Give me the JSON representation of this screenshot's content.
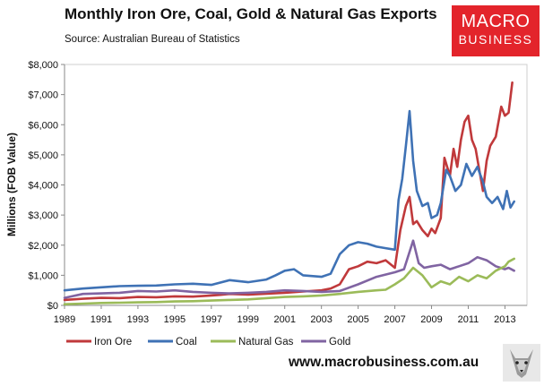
{
  "header": {
    "title": "Monthly Iron Ore, Coal, Gold & Natural Gas Exports",
    "subtitle": "Source: Australian Bureau of Statistics"
  },
  "logo": {
    "line1": "MACRO",
    "line2": "BUSINESS",
    "color": "#e3242b"
  },
  "footer": {
    "website": "www.macrobusiness.com.au",
    "mascot_icon": "wolf-icon"
  },
  "chart_data": {
    "type": "line",
    "title": "Monthly Iron Ore, Coal, Gold & Natural Gas Exports",
    "subtitle": "Source: Australian Bureau of Statistics",
    "xlabel": "",
    "ylabel": "Millions (FOB Value)",
    "xlim": [
      1989,
      2014.2
    ],
    "ylim": [
      0,
      8000
    ],
    "x_ticks": [
      1989,
      1991,
      1993,
      1995,
      1997,
      1999,
      2001,
      2003,
      2005,
      2007,
      2009,
      2011,
      2013
    ],
    "y_ticks": [
      0,
      1000,
      2000,
      3000,
      4000,
      5000,
      6000,
      7000,
      8000
    ],
    "y_tick_labels": [
      "$0",
      "$1,000",
      "$2,000",
      "$3,000",
      "$4,000",
      "$5,000",
      "$6,000",
      "$7,000",
      "$8,000"
    ],
    "grid": false,
    "legend_position": "bottom",
    "series": [
      {
        "name": "Iron Ore",
        "color": "#c0393b",
        "x": [
          1989.0,
          1990.0,
          1991.0,
          1992.0,
          1993.0,
          1994.0,
          1995.0,
          1996.0,
          1997.0,
          1997.5,
          1998.0,
          1999.0,
          2000.0,
          2001.0,
          2002.0,
          2003.0,
          2003.5,
          2004.0,
          2004.5,
          2005.0,
          2005.5,
          2006.0,
          2006.5,
          2007.0,
          2007.3,
          2007.6,
          2007.8,
          2008.0,
          2008.2,
          2008.5,
          2008.8,
          2009.0,
          2009.2,
          2009.5,
          2009.7,
          2010.0,
          2010.2,
          2010.4,
          2010.6,
          2010.8,
          2011.0,
          2011.2,
          2011.4,
          2011.6,
          2011.8,
          2012.0,
          2012.2,
          2012.5,
          2012.8,
          2013.0,
          2013.2,
          2013.4
        ],
        "y": [
          180,
          220,
          250,
          240,
          280,
          270,
          300,
          290,
          330,
          350,
          380,
          360,
          390,
          420,
          460,
          500,
          560,
          700,
          1200,
          1300,
          1450,
          1400,
          1500,
          1250,
          2500,
          3300,
          3600,
          2700,
          2800,
          2500,
          2300,
          2550,
          2400,
          2900,
          4900,
          4300,
          5200,
          4600,
          5500,
          6100,
          6300,
          5500,
          5200,
          4500,
          3800,
          4800,
          5300,
          5600,
          6600,
          6300,
          6400,
          7400
        ]
      },
      {
        "name": "Coal",
        "color": "#3f72b5",
        "x": [
          1989.0,
          1990.0,
          1991.0,
          1992.0,
          1993.0,
          1994.0,
          1995.0,
          1996.0,
          1997.0,
          1998.0,
          1999.0,
          2000.0,
          2000.5,
          2001.0,
          2001.5,
          2002.0,
          2003.0,
          2003.5,
          2004.0,
          2004.5,
          2005.0,
          2005.5,
          2006.0,
          2006.5,
          2007.0,
          2007.2,
          2007.4,
          2007.6,
          2007.8,
          2008.0,
          2008.2,
          2008.5,
          2008.8,
          2009.0,
          2009.3,
          2009.5,
          2009.8,
          2010.0,
          2010.3,
          2010.6,
          2010.9,
          2011.2,
          2011.5,
          2011.8,
          2012.0,
          2012.3,
          2012.6,
          2012.9,
          2013.1,
          2013.3,
          2013.5
        ],
        "y": [
          500,
          560,
          600,
          640,
          650,
          660,
          700,
          720,
          680,
          840,
          770,
          860,
          1000,
          1150,
          1200,
          1000,
          950,
          1050,
          1700,
          2000,
          2100,
          2050,
          1950,
          1900,
          1850,
          3500,
          4200,
          5300,
          6450,
          4800,
          3800,
          3300,
          3400,
          2900,
          3000,
          3400,
          4500,
          4300,
          3800,
          4000,
          4700,
          4300,
          4600,
          4100,
          3600,
          3400,
          3600,
          3200,
          3800,
          3250,
          3450
        ]
      },
      {
        "name": "Natural Gas",
        "color": "#9bbb59",
        "x": [
          1989.0,
          1990.0,
          1991.0,
          1992.0,
          1993.0,
          1994.0,
          1995.0,
          1996.0,
          1997.0,
          1998.0,
          1999.0,
          2000.0,
          2001.0,
          2002.0,
          2003.0,
          2004.0,
          2005.0,
          2006.0,
          2006.5,
          2007.0,
          2007.5,
          2008.0,
          2008.5,
          2009.0,
          2009.5,
          2010.0,
          2010.5,
          2011.0,
          2011.5,
          2012.0,
          2012.5,
          2013.0,
          2013.2,
          2013.5
        ],
        "y": [
          40,
          60,
          80,
          90,
          100,
          110,
          130,
          140,
          160,
          180,
          200,
          240,
          280,
          300,
          330,
          380,
          450,
          500,
          520,
          700,
          900,
          1250,
          1000,
          600,
          800,
          700,
          950,
          800,
          1000,
          900,
          1150,
          1300,
          1450,
          1550
        ]
      },
      {
        "name": "Gold",
        "color": "#8064a2",
        "x": [
          1989.0,
          1990.0,
          1991.0,
          1992.0,
          1993.0,
          1994.0,
          1995.0,
          1996.0,
          1997.0,
          1998.0,
          1999.0,
          2000.0,
          2001.0,
          2002.0,
          2003.0,
          2004.0,
          2005.0,
          2006.0,
          2007.0,
          2007.5,
          2008.0,
          2008.3,
          2008.6,
          2009.0,
          2009.5,
          2010.0,
          2010.5,
          2011.0,
          2011.5,
          2012.0,
          2012.5,
          2013.0,
          2013.2,
          2013.5
        ],
        "y": [
          250,
          380,
          400,
          420,
          480,
          460,
          500,
          450,
          420,
          400,
          420,
          450,
          500,
          480,
          450,
          480,
          700,
          950,
          1100,
          1200,
          2150,
          1400,
          1250,
          1300,
          1350,
          1200,
          1300,
          1400,
          1600,
          1500,
          1300,
          1200,
          1250,
          1150
        ]
      }
    ]
  }
}
